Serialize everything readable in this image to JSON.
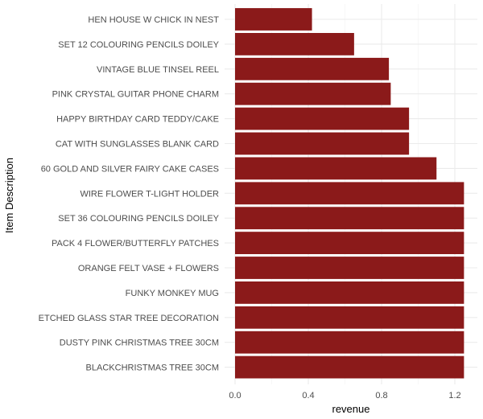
{
  "chart_data": {
    "type": "bar",
    "orientation": "horizontal",
    "title": "",
    "xlabel": "revenue",
    "ylabel": "Item Description",
    "xlim": [
      0,
      1.3
    ],
    "x_ticks": [
      0.0,
      0.4,
      0.8,
      1.2
    ],
    "x_tick_labels": [
      "0.0",
      "0.4",
      "0.8",
      "1.2"
    ],
    "grid": "on",
    "legend": "none",
    "bar_color": "#8b1a1a",
    "categories": [
      "HEN HOUSE W CHICK IN NEST",
      "SET 12 COLOURING PENCILS DOILEY",
      "VINTAGE BLUE TINSEL REEL",
      "PINK CRYSTAL GUITAR PHONE CHARM",
      "HAPPY BIRTHDAY CARD TEDDY/CAKE",
      "CAT WITH SUNGLASSES BLANK CARD",
      "60 GOLD AND SILVER FAIRY CAKE CASES",
      "WIRE FLOWER T-LIGHT HOLDER",
      "SET 36 COLOURING PENCILS DOILEY",
      "PACK 4 FLOWER/BUTTERFLY PATCHES",
      "ORANGE FELT VASE + FLOWERS",
      "FUNKY MONKEY MUG",
      "ETCHED GLASS STAR TREE DECORATION",
      "DUSTY PINK CHRISTMAS TREE 30CM",
      "BLACKCHRISTMAS TREE 30CM"
    ],
    "values": [
      0.42,
      0.65,
      0.84,
      0.85,
      0.95,
      0.95,
      1.1,
      1.25,
      1.25,
      1.25,
      1.25,
      1.25,
      1.25,
      1.25,
      1.25
    ]
  }
}
